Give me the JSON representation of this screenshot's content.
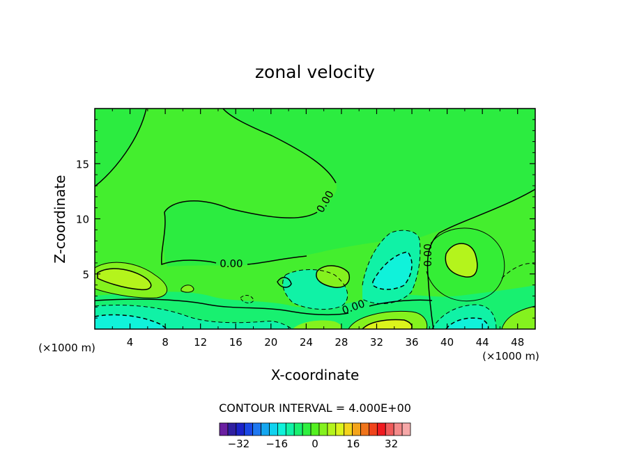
{
  "chart_data": {
    "type": "contour",
    "title": "zonal velocity",
    "xlabel": "X-coordinate",
    "ylabel": "Z-coordinate",
    "x_unit": "(×1000 m)",
    "x_unit_right": "(×1000 m)",
    "xlim": [
      0,
      50
    ],
    "ylim": [
      0,
      20
    ],
    "x_ticks": [
      "4",
      "8",
      "12",
      "16",
      "20",
      "24",
      "28",
      "32",
      "36",
      "40",
      "44",
      "48"
    ],
    "x_tick_values": [
      4,
      8,
      12,
      16,
      20,
      24,
      28,
      32,
      36,
      40,
      44,
      48
    ],
    "y_ticks": [
      "5",
      "10",
      "15"
    ],
    "y_tick_values": [
      5,
      10,
      15
    ],
    "contour_interval_text": "CONTOUR INTERVAL = 4.000E+00",
    "contour_interval": 4.0,
    "contour_labels": [
      {
        "text": "0.00",
        "x": 26.5,
        "z": 11.4
      },
      {
        "text": "0.00",
        "x": 15.5,
        "z": 5.6
      },
      {
        "text": "0.00",
        "x": 29.5,
        "z": 1.7
      },
      {
        "text": "0.00",
        "x": 38.2,
        "z": 6.7
      }
    ],
    "features": [
      {
        "description": "positive maximum",
        "x": 3.5,
        "z": 4.8,
        "value": 8
      },
      {
        "description": "positive maximum",
        "x": 41.5,
        "z": 6.4,
        "value": 8
      },
      {
        "description": "positive maximum",
        "x": 33.0,
        "z": 0.5,
        "value": 12
      },
      {
        "description": "negative minimum",
        "x": 34.0,
        "z": 5.5,
        "value": -8
      },
      {
        "description": "negative minimum",
        "x": 42.0,
        "z": 0.5,
        "value": -8
      },
      {
        "description": "negative minimum",
        "x": 2.5,
        "z": 0.4,
        "value": -8
      }
    ],
    "colorbar": {
      "tick_labels": [
        "-32",
        "-16",
        "0",
        "16",
        "32"
      ],
      "tick_values": [
        -32,
        -16,
        0,
        16,
        32
      ],
      "levels": [
        -40,
        40
      ],
      "colors": [
        "#6a1fa0",
        "#2f1fa0",
        "#1b22c8",
        "#1a48e6",
        "#1f78f0",
        "#14a6f0",
        "#10d2ef",
        "#10f2da",
        "#10f2a6",
        "#18f070",
        "#30f040",
        "#54f020",
        "#84f21e",
        "#b4f41c",
        "#dcf41c",
        "#f4d41c",
        "#f4a41a",
        "#f0741a",
        "#f0441c",
        "#f01a20",
        "#f05a5a",
        "#f48a8a",
        "#f6a8a8"
      ]
    }
  }
}
